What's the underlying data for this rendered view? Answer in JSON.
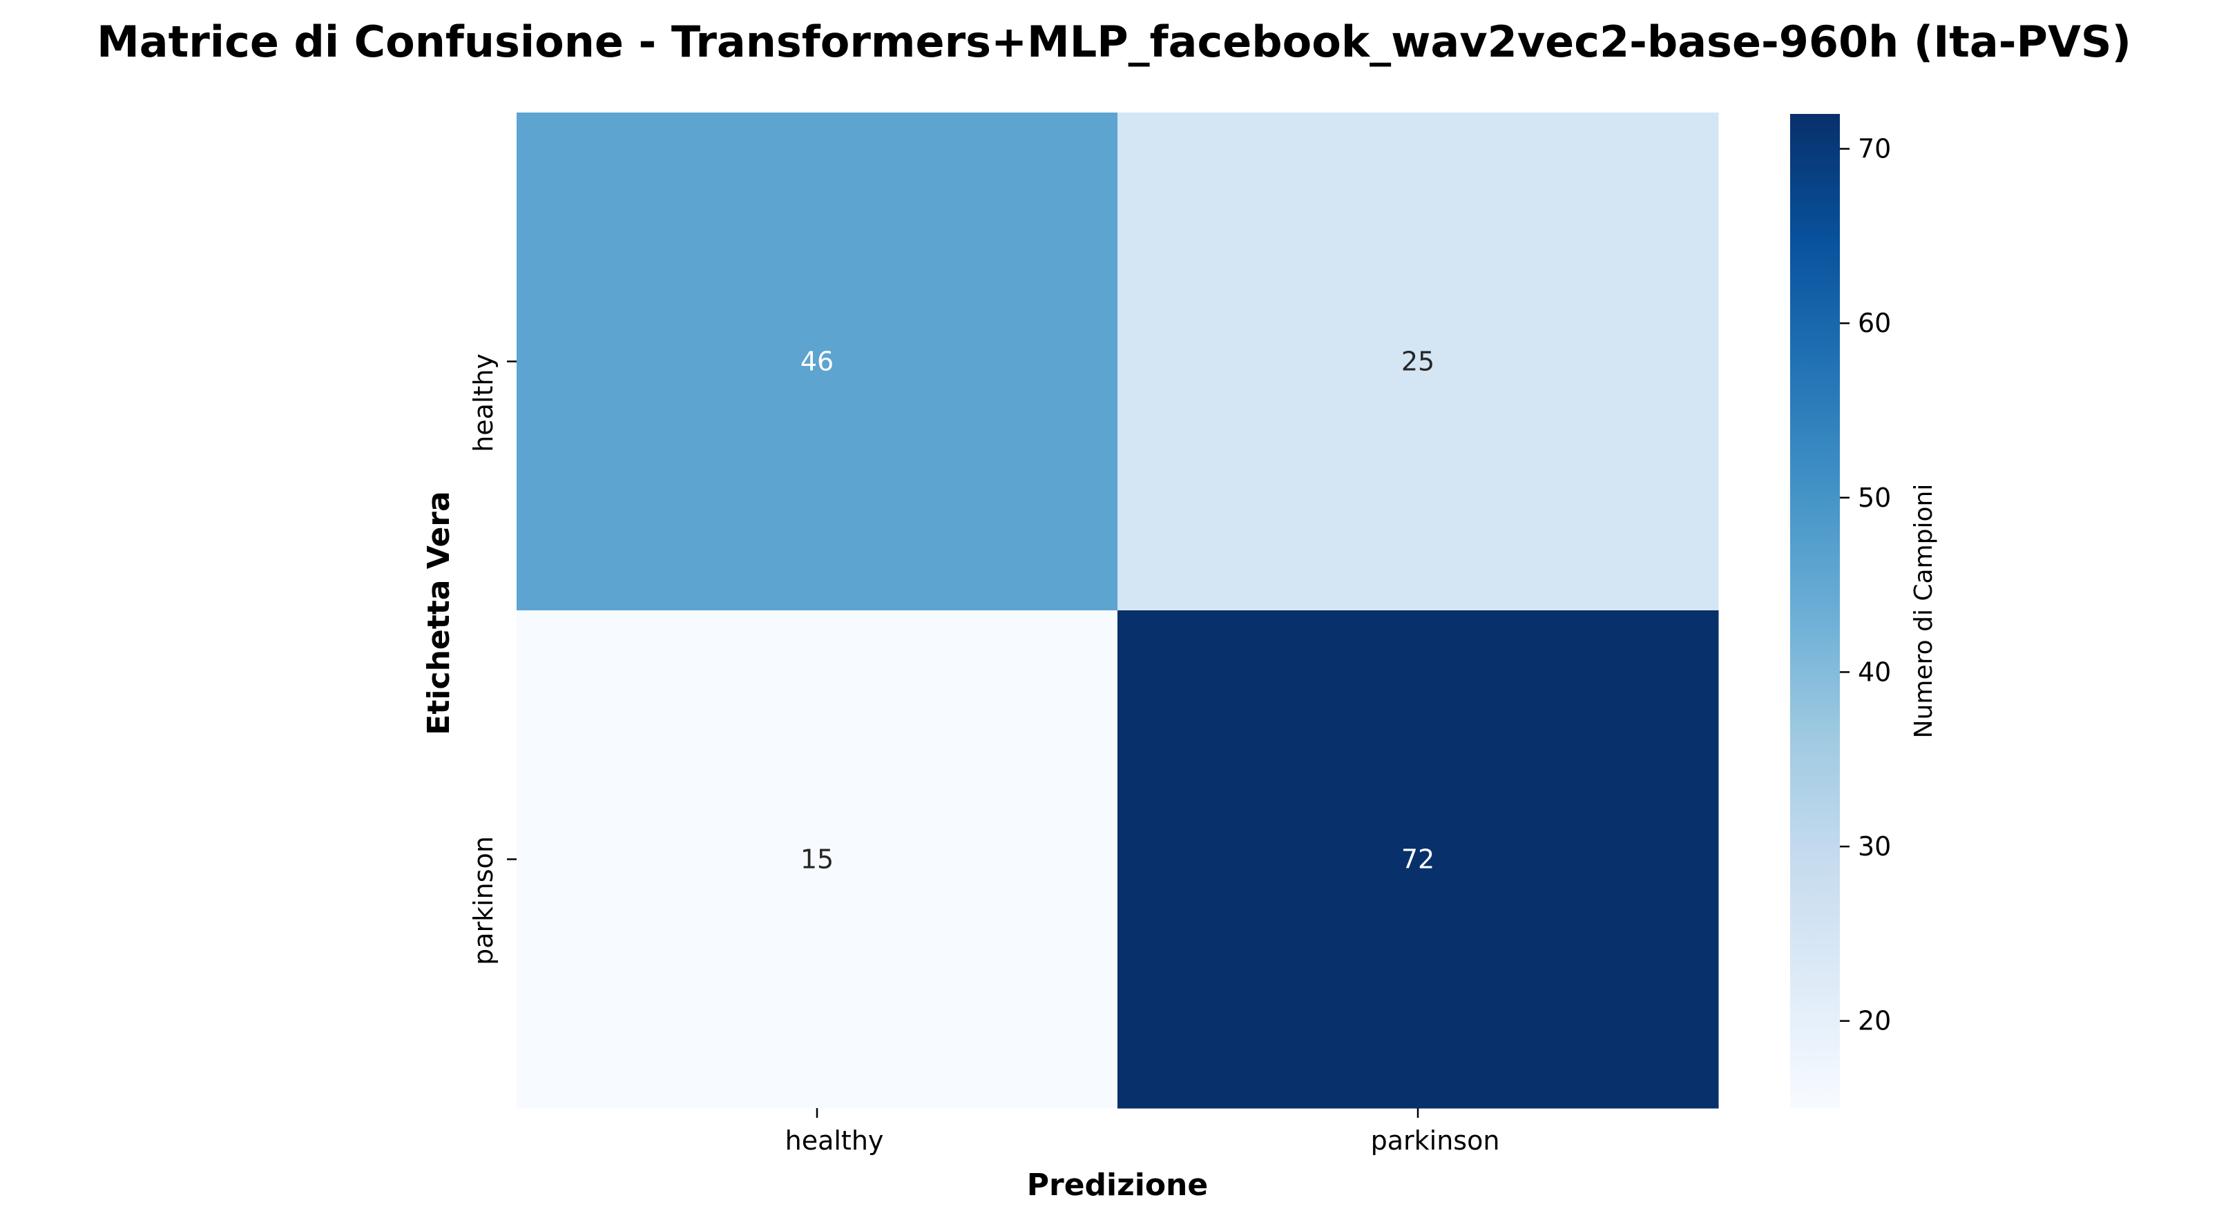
{
  "chart_data": {
    "type": "heatmap",
    "title": "Matrice di Confusione - Transformers+MLP_facebook_wav2vec2-base-960h (Ita-PVS)",
    "xlabel": "Predizione",
    "ylabel": "Etichetta Vera",
    "x_categories": [
      "healthy",
      "parkinson"
    ],
    "y_categories": [
      "healthy",
      "parkinson"
    ],
    "values": [
      [
        46,
        25
      ],
      [
        15,
        72
      ]
    ],
    "colormap": "Blues",
    "colorbar": {
      "label": "Numero di Campioni",
      "range": [
        15,
        72
      ],
      "ticks": [
        "20",
        "30",
        "40",
        "50",
        "60",
        "70"
      ]
    }
  }
}
